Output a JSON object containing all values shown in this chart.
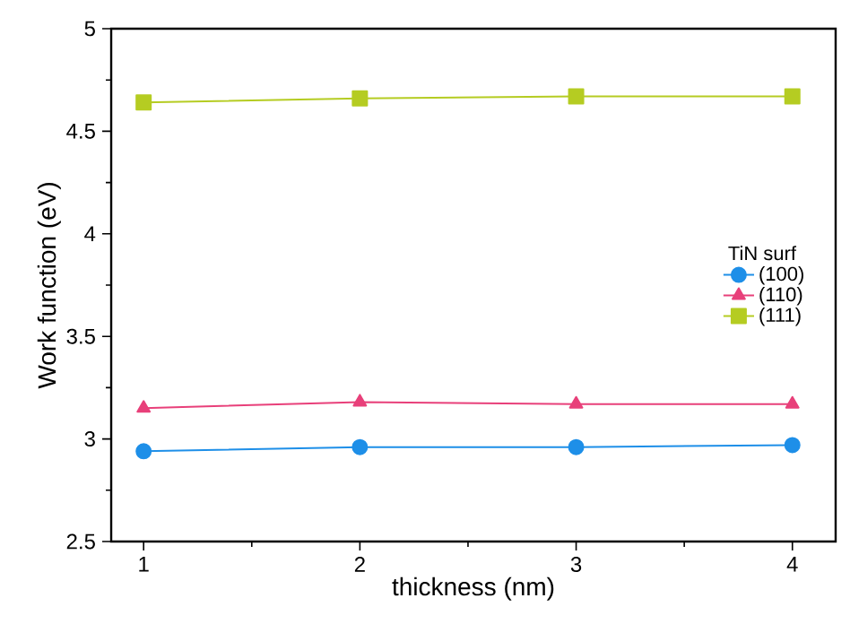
{
  "chart_data": {
    "type": "line",
    "xlabel": "thickness (nm)",
    "ylabel": "Work function (eV)",
    "legend_title": "TiN surf",
    "x": [
      1,
      2,
      3,
      4
    ],
    "series": [
      {
        "name": "(100)",
        "color": "#1e8fe8",
        "values": [
          2.94,
          2.96,
          2.96,
          2.97
        ],
        "marker": "circle"
      },
      {
        "name": "(110)",
        "color": "#e8407a",
        "values": [
          3.15,
          3.18,
          3.17,
          3.17
        ],
        "marker": "triangle"
      },
      {
        "name": "(111)",
        "color": "#b5cc22",
        "values": [
          4.64,
          4.66,
          4.67,
          4.67
        ],
        "marker": "square"
      }
    ],
    "xlim": [
      0.85,
      4.2
    ],
    "xticks": [
      1,
      2,
      3,
      4
    ],
    "ylim": [
      2.5,
      5
    ],
    "yticks": [
      2.5,
      3,
      3.5,
      4,
      4.5,
      5
    ],
    "grid": false,
    "legend": "right"
  }
}
